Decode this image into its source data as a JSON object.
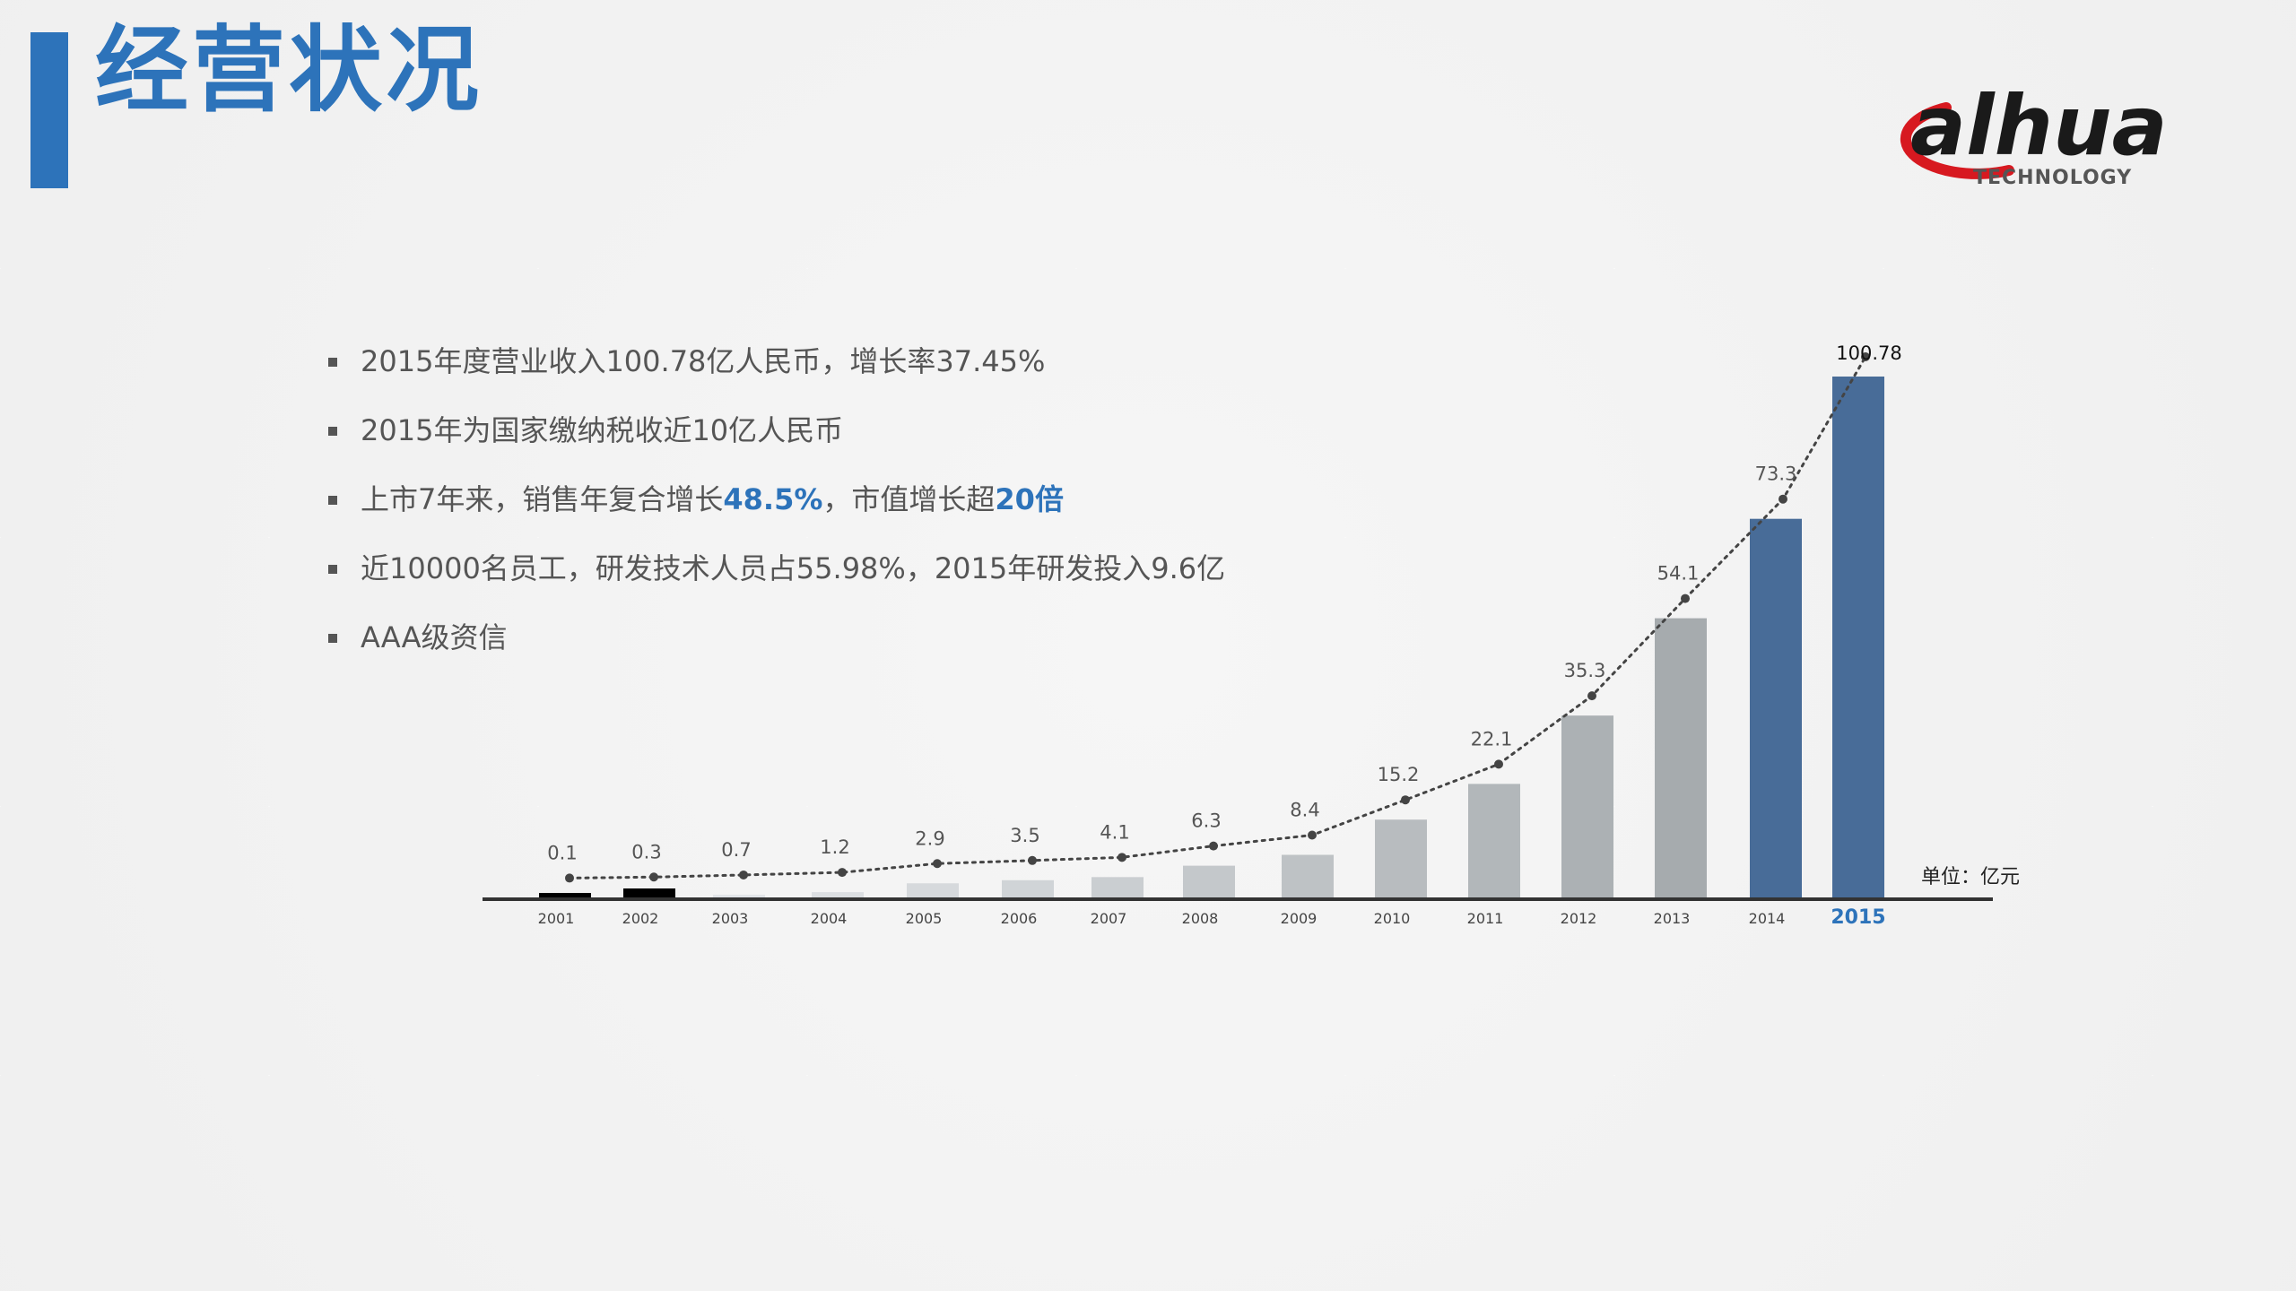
{
  "header": {
    "title": "经营状况"
  },
  "logo": {
    "brand": "alhua",
    "tagline": "TECHNOLOGY",
    "colors": {
      "ring": "#d71920",
      "text": "#1a1a1a"
    }
  },
  "bullets": [
    {
      "parts": [
        "2015年度营业收入100.78亿人民币，增长率37.45%"
      ]
    },
    {
      "parts": [
        "2015年为国家缴纳税收近10亿人民币"
      ]
    },
    {
      "parts": [
        "上市7年来，销售年复合增长",
        "48.5%",
        "，市值增长超",
        "20倍"
      ],
      "highlight": [
        1,
        3
      ]
    },
    {
      "parts": [
        "近10000名员工，研发技术人员占55.98%，2015年研发投入9.6亿"
      ]
    },
    {
      "parts": [
        "AAA级资信"
      ]
    }
  ],
  "chart_data": {
    "type": "bar",
    "categories": [
      "2001",
      "2002",
      "2003",
      "2004",
      "2005",
      "2006",
      "2007",
      "2008",
      "2009",
      "2010",
      "2011",
      "2012",
      "2013",
      "2014",
      "2015"
    ],
    "values": [
      0.1,
      0.3,
      0.7,
      1.2,
      2.9,
      3.5,
      4.1,
      6.3,
      8.4,
      15.2,
      22.1,
      35.3,
      54.1,
      73.3,
      100.78
    ],
    "data_labels": [
      "0.1",
      "0.3",
      "0.7",
      "1.2",
      "2.9",
      "3.5",
      "4.1",
      "6.3",
      "8.4",
      "15.2",
      "22.1",
      "35.3",
      "54.1",
      "73.3",
      "100.78"
    ],
    "unit_label": "单位：亿元",
    "highlighted_category": "2015",
    "trend_line": "dotted",
    "ylim": [
      0,
      100.78
    ],
    "colors": {
      "early": "#000000",
      "gray": "#a6abae",
      "blue": "#486c98",
      "axis": "#333333",
      "highlight_text": "#2d73ba"
    }
  }
}
